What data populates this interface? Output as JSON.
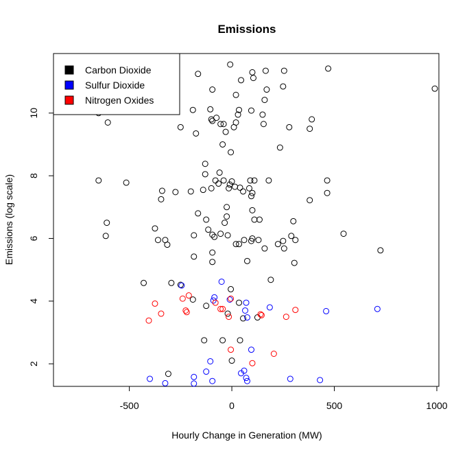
{
  "chart_data": {
    "type": "scatter",
    "title": "Emissions",
    "xlabel": "Hourly Change in Generation (MW)",
    "ylabel": "Emissions (log scale)",
    "xlim": [
      -870,
      1010
    ],
    "ylim": [
      1.28,
      11.9
    ],
    "x_ticks": [
      -500,
      0,
      500,
      1000
    ],
    "y_ticks": [
      2,
      4,
      6,
      8,
      10
    ],
    "grid": false,
    "legend_position": "top-left",
    "marker": "open-circle",
    "series": [
      {
        "name": "Carbon Dioxide",
        "color": "#000000",
        "points": [
          [
            -8,
            11.55
          ],
          [
            470,
            11.42
          ],
          [
            -165,
            11.25
          ],
          [
            100,
            11.3
          ],
          [
            165,
            11.35
          ],
          [
            255,
            11.35
          ],
          [
            105,
            11.12
          ],
          [
            45,
            11.05
          ],
          [
            -95,
            10.75
          ],
          [
            170,
            10.75
          ],
          [
            250,
            10.85
          ],
          [
            990,
            10.78
          ],
          [
            20,
            10.58
          ],
          [
            160,
            10.42
          ],
          [
            -190,
            10.1
          ],
          [
            -105,
            10.12
          ],
          [
            35,
            10.1
          ],
          [
            95,
            10.08
          ],
          [
            -650,
            10.0
          ],
          [
            -605,
            9.7
          ],
          [
            -100,
            9.8
          ],
          [
            -95,
            9.75
          ],
          [
            -75,
            9.85
          ],
          [
            30,
            9.95
          ],
          [
            -55,
            9.65
          ],
          [
            -40,
            9.65
          ],
          [
            20,
            9.7
          ],
          [
            150,
            9.95
          ],
          [
            155,
            9.65
          ],
          [
            -250,
            9.55
          ],
          [
            -175,
            9.35
          ],
          [
            -30,
            9.4
          ],
          [
            10,
            9.55
          ],
          [
            280,
            9.55
          ],
          [
            380,
            9.5
          ],
          [
            390,
            9.8
          ],
          [
            -45,
            9.0
          ],
          [
            235,
            8.9
          ],
          [
            -5,
            8.75
          ],
          [
            -130,
            8.38
          ],
          [
            -130,
            8.05
          ],
          [
            -60,
            8.1
          ],
          [
            -650,
            7.85
          ],
          [
            -515,
            7.78
          ],
          [
            -80,
            7.85
          ],
          [
            -65,
            7.75
          ],
          [
            -40,
            7.85
          ],
          [
            -10,
            7.72
          ],
          [
            0,
            7.82
          ],
          [
            90,
            7.85
          ],
          [
            110,
            7.85
          ],
          [
            180,
            7.85
          ],
          [
            465,
            7.85
          ],
          [
            -340,
            7.52
          ],
          [
            -345,
            7.25
          ],
          [
            -275,
            7.48
          ],
          [
            -200,
            7.5
          ],
          [
            -140,
            7.55
          ],
          [
            -100,
            7.6
          ],
          [
            -15,
            7.6
          ],
          [
            15,
            7.65
          ],
          [
            40,
            7.62
          ],
          [
            55,
            7.5
          ],
          [
            85,
            7.6
          ],
          [
            95,
            7.35
          ],
          [
            100,
            7.45
          ],
          [
            465,
            7.45
          ],
          [
            380,
            7.22
          ],
          [
            -25,
            7.0
          ],
          [
            -165,
            6.8
          ],
          [
            -125,
            6.6
          ],
          [
            -25,
            6.7
          ],
          [
            -35,
            6.5
          ],
          [
            100,
            6.9
          ],
          [
            110,
            6.6
          ],
          [
            135,
            6.6
          ],
          [
            300,
            6.55
          ],
          [
            -610,
            6.5
          ],
          [
            -615,
            6.08
          ],
          [
            -375,
            6.32
          ],
          [
            -360,
            5.95
          ],
          [
            -325,
            5.95
          ],
          [
            -315,
            5.8
          ],
          [
            -185,
            6.1
          ],
          [
            -115,
            6.28
          ],
          [
            -95,
            6.12
          ],
          [
            -85,
            6.05
          ],
          [
            -55,
            6.15
          ],
          [
            -20,
            6.1
          ],
          [
            20,
            5.82
          ],
          [
            35,
            5.82
          ],
          [
            60,
            5.95
          ],
          [
            95,
            5.92
          ],
          [
            100,
            6.0
          ],
          [
            130,
            5.95
          ],
          [
            160,
            5.68
          ],
          [
            225,
            5.82
          ],
          [
            250,
            5.92
          ],
          [
            255,
            5.68
          ],
          [
            290,
            6.08
          ],
          [
            310,
            5.95
          ],
          [
            545,
            6.15
          ],
          [
            725,
            5.62
          ],
          [
            -185,
            5.42
          ],
          [
            -95,
            5.55
          ],
          [
            -95,
            5.25
          ],
          [
            75,
            5.28
          ],
          [
            305,
            5.22
          ],
          [
            190,
            4.68
          ],
          [
            -430,
            4.58
          ],
          [
            -295,
            4.58
          ],
          [
            -250,
            4.52
          ],
          [
            -190,
            4.05
          ],
          [
            -125,
            3.85
          ],
          [
            -5,
            4.38
          ],
          [
            35,
            3.95
          ],
          [
            55,
            3.45
          ],
          [
            125,
            3.48
          ],
          [
            -20,
            3.6
          ],
          [
            -45,
            2.75
          ],
          [
            -135,
            2.75
          ],
          [
            40,
            2.75
          ],
          [
            0,
            2.1
          ],
          [
            -310,
            1.68
          ]
        ]
      },
      {
        "name": "Sulfur Dioxide",
        "color": "#0000ff",
        "points": [
          [
            -245,
            4.5
          ],
          [
            -85,
            4.12
          ],
          [
            -90,
            4.02
          ],
          [
            -50,
            4.62
          ],
          [
            -10,
            4.05
          ],
          [
            70,
            3.95
          ],
          [
            65,
            3.7
          ],
          [
            75,
            3.48
          ],
          [
            185,
            3.8
          ],
          [
            460,
            3.68
          ],
          [
            710,
            3.75
          ],
          [
            -105,
            2.08
          ],
          [
            95,
            2.45
          ],
          [
            -400,
            1.52
          ],
          [
            -325,
            1.38
          ],
          [
            -185,
            1.58
          ],
          [
            -185,
            1.37
          ],
          [
            -125,
            1.75
          ],
          [
            -95,
            1.45
          ],
          [
            45,
            1.7
          ],
          [
            60,
            1.78
          ],
          [
            70,
            1.55
          ],
          [
            75,
            1.45
          ],
          [
            285,
            1.52
          ],
          [
            430,
            1.48
          ]
        ]
      },
      {
        "name": "Nitrogen Oxides",
        "color": "#ff0000",
        "points": [
          [
            -375,
            3.92
          ],
          [
            -345,
            3.6
          ],
          [
            -405,
            3.38
          ],
          [
            -240,
            4.08
          ],
          [
            -210,
            4.18
          ],
          [
            -225,
            3.7
          ],
          [
            -220,
            3.65
          ],
          [
            -80,
            3.95
          ],
          [
            -55,
            3.75
          ],
          [
            -45,
            3.75
          ],
          [
            -15,
            3.5
          ],
          [
            -5,
            4.08
          ],
          [
            140,
            3.58
          ],
          [
            145,
            3.55
          ],
          [
            265,
            3.5
          ],
          [
            310,
            3.72
          ],
          [
            -5,
            2.45
          ],
          [
            100,
            2.02
          ],
          [
            205,
            2.32
          ]
        ]
      }
    ]
  }
}
